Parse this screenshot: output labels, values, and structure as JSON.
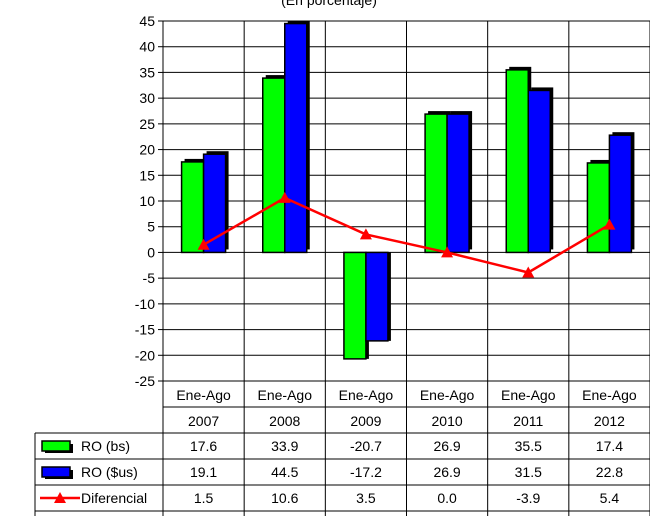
{
  "chart_data": {
    "type": "bar",
    "subtitle": "(En porcentaje)",
    "categories": [
      {
        "line1": "Ene-Ago",
        "line2": "2007"
      },
      {
        "line1": "Ene-Ago",
        "line2": "2008"
      },
      {
        "line1": "Ene-Ago",
        "line2": "2009"
      },
      {
        "line1": "Ene-Ago",
        "line2": "2010"
      },
      {
        "line1": "Ene-Ago",
        "line2": "2011"
      },
      {
        "line1": "Ene-Ago",
        "line2": "2012"
      }
    ],
    "ylim": [
      -25,
      45
    ],
    "yticks": [
      "45",
      "40",
      "35",
      "30",
      "25",
      "20",
      "15",
      "10",
      "5",
      "0",
      "-5",
      "-10",
      "-15",
      "-20",
      "-25"
    ],
    "grid": true,
    "legend": "data-table",
    "series": [
      {
        "name": "RO (bs)",
        "kind": "bar",
        "color": "#00ff00",
        "values": [
          17.6,
          33.9,
          -20.7,
          26.9,
          35.5,
          17.4
        ],
        "labels": [
          "17.6",
          "33.9",
          "-20.7",
          "26.9",
          "35.5",
          "17.4"
        ]
      },
      {
        "name": "RO ($us)",
        "kind": "bar",
        "color": "#0000ff",
        "values": [
          19.1,
          44.5,
          -17.2,
          26.9,
          31.5,
          22.8
        ],
        "labels": [
          "19.1",
          "44.5",
          "-17.2",
          "26.9",
          "31.5",
          "22.8"
        ]
      },
      {
        "name": "Diferencial",
        "kind": "line",
        "color": "#ff0000",
        "values": [
          1.5,
          10.6,
          3.5,
          0.0,
          -3.9,
          5.4
        ],
        "labels": [
          "1.5",
          "10.6",
          "3.5",
          "0.0",
          "-3.9",
          "5.4"
        ]
      }
    ]
  }
}
